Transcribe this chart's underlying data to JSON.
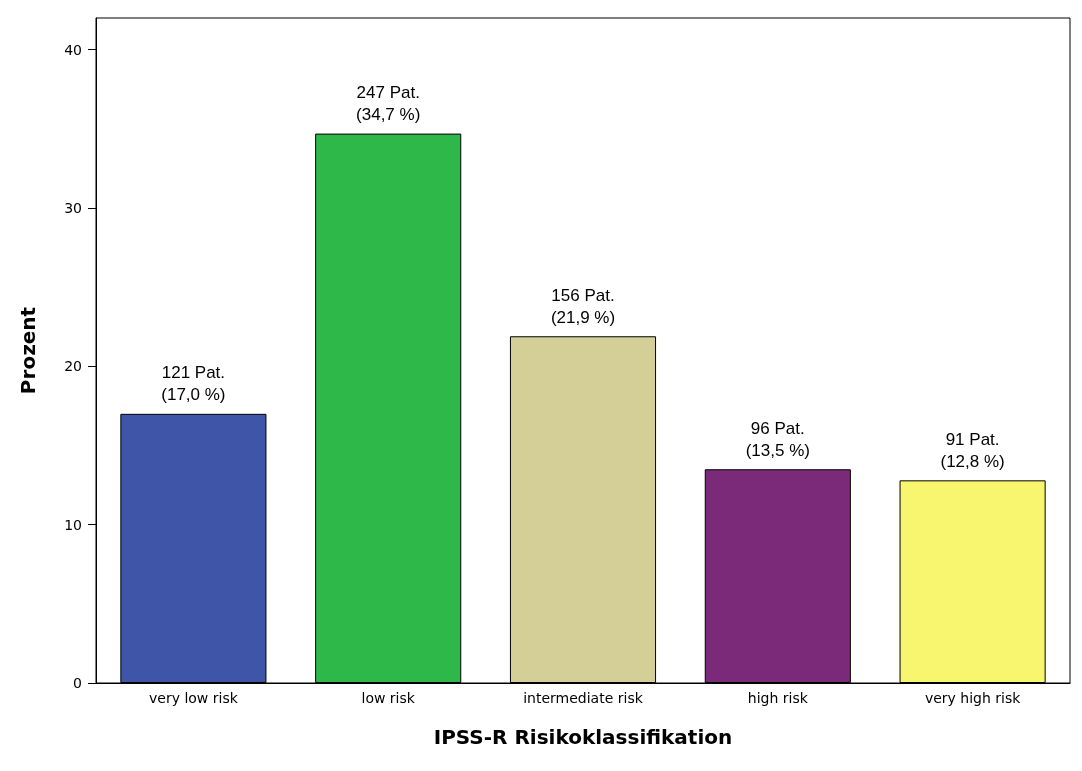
{
  "chart_data": {
    "type": "bar",
    "xlabel": "IPSS-R Risikoklassifikation",
    "ylabel": "Prozent",
    "categories": [
      "very low risk",
      "low risk",
      "intermediate risk",
      "high risk",
      "very high risk"
    ],
    "values": [
      17.0,
      34.7,
      21.9,
      13.5,
      12.8
    ],
    "colors": [
      "#3f56a8",
      "#2eb84a",
      "#d4cf96",
      "#7b2a7a",
      "#f8f56f"
    ],
    "value_labels": [
      "121 Pat.\n(17,0 %)",
      "247 Pat.\n(34,7 %)",
      "156 Pat.\n(21,9 %)",
      "96 Pat.\n(13,5 %)",
      "91 Pat.\n(12,8 %)"
    ],
    "ylim": [
      0,
      42
    ],
    "yticks": [
      0,
      10,
      20,
      30,
      40
    ]
  }
}
